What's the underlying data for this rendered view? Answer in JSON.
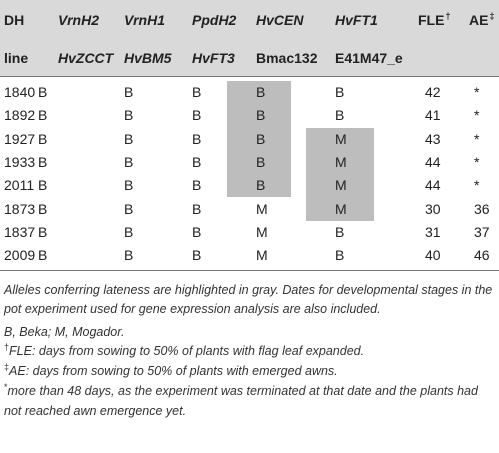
{
  "table": {
    "header_row1": {
      "dh": "DH",
      "c1": "VrnH2",
      "c2": "VrnH1",
      "c3": "PpdH2",
      "c4": "HvCEN",
      "c5": "HvFT1",
      "fle": "FLE",
      "fle_mark": "†",
      "ae": "AE",
      "ae_mark": "‡"
    },
    "header_row2": {
      "line": "line",
      "c1": "HvZCCT",
      "c2": "HvBM5",
      "c3": "HvFT3",
      "c4": "Bmac132",
      "c5": "E41M47_e"
    },
    "rows": [
      {
        "line": "1840",
        "c1": "B",
        "c2": "B",
        "c3": "B",
        "c4": "B",
        "c5": "B",
        "fle": "42",
        "ae": "*"
      },
      {
        "line": "1892",
        "c1": "B",
        "c2": "B",
        "c3": "B",
        "c4": "B",
        "c5": "B",
        "fle": "41",
        "ae": "*"
      },
      {
        "line": "1927",
        "c1": "B",
        "c2": "B",
        "c3": "B",
        "c4": "B",
        "c5": "M",
        "fle": "43",
        "ae": "*"
      },
      {
        "line": "1933",
        "c1": "B",
        "c2": "B",
        "c3": "B",
        "c4": "B",
        "c5": "M",
        "fle": "44",
        "ae": "*"
      },
      {
        "line": "2011",
        "c1": "B",
        "c2": "B",
        "c3": "B",
        "c4": "B",
        "c5": "M",
        "fle": "44",
        "ae": "*"
      },
      {
        "line": "1873",
        "c1": "B",
        "c2": "B",
        "c3": "B",
        "c4": "M",
        "c5": "M",
        "fle": "30",
        "ae": "36"
      },
      {
        "line": "1837",
        "c1": "B",
        "c2": "B",
        "c3": "B",
        "c4": "M",
        "c5": "B",
        "fle": "31",
        "ae": "37"
      },
      {
        "line": "2009",
        "c1": "B",
        "c2": "B",
        "c3": "B",
        "c4": "M",
        "c5": "B",
        "fle": "40",
        "ae": "46"
      }
    ]
  },
  "notes": {
    "lateness": "Alleles conferring lateness are highlighted in gray. Dates for developmental stages in the pot experiment used for gene expression analysis are also included.",
    "legend": "B, Beka; M, Mogador.",
    "fle_mark": "†",
    "fle_note": "FLE: days from sowing to 50% of plants with flag leaf expanded.",
    "ae_mark": "‡",
    "ae_note": "AE: days from sowing to 50% of plants with emerged awns.",
    "star_mark": "*",
    "star_note": "more than 48 days, as the experiment was terminated at that date and the plants had not reached awn emergence yet."
  },
  "colors": {
    "header_bg": "#d9d9d9",
    "highlight": "#bdbdbd"
  }
}
